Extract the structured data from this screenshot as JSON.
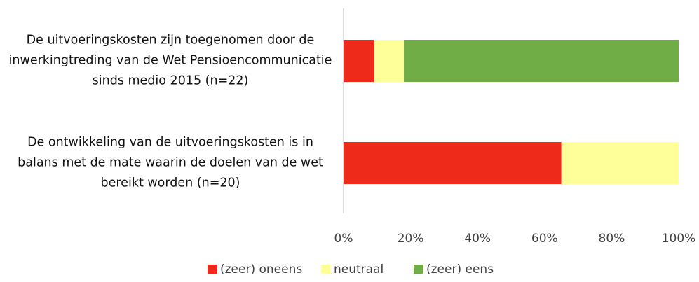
{
  "chart_data": {
    "type": "stacked_barh",
    "categories": [
      "De uitvoeringskosten zijn toegenomen door de inwerkingtreding van de Wet Pensioencommunicatie sinds medio 2015 (n=22)",
      "De ontwikkeling van de uitvoeringskosten is in balans met de mate waarin de doelen van de wet bereikt worden (n=20)"
    ],
    "series": [
      {
        "name": "(zeer) oneens",
        "color": "#ee2a1b",
        "values": [
          9,
          65
        ]
      },
      {
        "name": "neutraal",
        "color": "#ffff99",
        "values": [
          9,
          35
        ]
      },
      {
        "name": "(zeer) eens",
        "color": "#70ad47",
        "values": [
          82,
          0
        ]
      }
    ],
    "xlim": [
      0,
      100
    ],
    "xticks": [
      {
        "value": 0,
        "label": "0%"
      },
      {
        "value": 20,
        "label": "20%"
      },
      {
        "value": 40,
        "label": "40%"
      },
      {
        "value": 60,
        "label": "60%"
      },
      {
        "value": 80,
        "label": "80%"
      },
      {
        "value": 100,
        "label": "100%"
      }
    ],
    "legend": "bottom"
  }
}
